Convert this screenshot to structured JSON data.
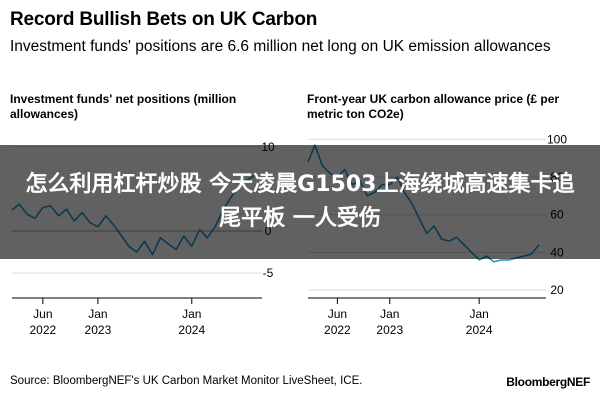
{
  "header": {
    "title": "Record Bullish Bets on UK Carbon",
    "subtitle": "Investment funds' positions are 6.6 million net long on UK emission allowances"
  },
  "chart_data": [
    {
      "type": "line",
      "title": "Investment funds' net positions (million allowances)",
      "color": "#1f97d4",
      "y_axis_side": "right",
      "ylim": [
        -7,
        12
      ],
      "yticks": [
        10,
        0,
        -5
      ],
      "xticks": [
        {
          "x": "2022-06-01",
          "label": "Jun",
          "sub": "2022"
        },
        {
          "x": "2023-01-01",
          "label": "Jan",
          "sub": "2023"
        },
        {
          "x": "2024-01-01",
          "label": "Jan",
          "sub": "2024"
        }
      ],
      "xlim": [
        "2022-02-01",
        "2024-09-30"
      ],
      "x": [
        "2022-02-01",
        "2022-03-01",
        "2022-04-01",
        "2022-05-01",
        "2022-06-01",
        "2022-07-01",
        "2022-08-01",
        "2022-09-01",
        "2022-10-01",
        "2022-11-01",
        "2022-12-01",
        "2023-01-01",
        "2023-02-01",
        "2023-03-01",
        "2023-04-01",
        "2023-05-01",
        "2023-06-01",
        "2023-07-01",
        "2023-08-01",
        "2023-09-01",
        "2023-10-01",
        "2023-11-01",
        "2023-12-01",
        "2024-01-01",
        "2024-02-01",
        "2024-03-01",
        "2024-04-01",
        "2024-05-01",
        "2024-06-01",
        "2024-07-01",
        "2024-08-01",
        "2024-09-01"
      ],
      "series": [
        {
          "values": [
            2.5,
            3.2,
            2.0,
            1.5,
            2.8,
            3.0,
            1.8,
            2.6,
            1.2,
            2.2,
            1.0,
            0.5,
            1.8,
            0.8,
            -0.5,
            -1.8,
            -2.5,
            -1.2,
            -2.8,
            -0.8,
            -1.5,
            -2.2,
            -0.6,
            -1.8,
            0.2,
            -0.8,
            0.5,
            2.5,
            4.0,
            5.2,
            6.0,
            6.6
          ]
        }
      ]
    },
    {
      "type": "line",
      "title": "Front-year UK carbon allowance price (£ per metric ton CO2e)",
      "color": "#1f97d4",
      "y_axis_side": "right",
      "ylim": [
        20,
        105
      ],
      "yticks": [
        100,
        80,
        60,
        40,
        20
      ],
      "xticks": [
        {
          "x": "2022-06-01",
          "label": "Jun",
          "sub": "2022"
        },
        {
          "x": "2023-01-01",
          "label": "Jan",
          "sub": "2023"
        },
        {
          "x": "2024-01-01",
          "label": "Jan",
          "sub": "2024"
        }
      ],
      "xlim": [
        "2022-02-01",
        "2024-09-30"
      ],
      "x": [
        "2022-02-01",
        "2022-03-01",
        "2022-04-01",
        "2022-05-01",
        "2022-06-01",
        "2022-07-01",
        "2022-08-01",
        "2022-09-01",
        "2022-10-01",
        "2022-11-01",
        "2022-12-01",
        "2023-01-01",
        "2023-02-01",
        "2023-03-01",
        "2023-04-01",
        "2023-05-01",
        "2023-06-01",
        "2023-07-01",
        "2023-08-01",
        "2023-09-01",
        "2023-10-01",
        "2023-11-01",
        "2023-12-01",
        "2024-01-01",
        "2024-02-01",
        "2024-03-01",
        "2024-04-01",
        "2024-05-01",
        "2024-06-01",
        "2024-07-01",
        "2024-08-01",
        "2024-09-01"
      ],
      "series": [
        {
          "values": [
            88,
            97,
            86,
            82,
            80,
            84,
            76,
            78,
            70,
            72,
            76,
            76,
            80,
            72,
            66,
            58,
            50,
            54,
            47,
            46,
            48,
            44,
            40,
            36,
            38,
            35,
            36,
            36,
            37,
            38,
            39,
            44
          ]
        }
      ]
    }
  ],
  "banner": {
    "text": "怎么利用杠杆炒股 今天凌晨G1503上海绕城高速集卡追尾平板 一人受伤"
  },
  "footer": {
    "source": "Source: BloombergNEF's UK Carbon Market Monitor LiveSheet, ICE.",
    "brand": "BloombergNEF"
  }
}
